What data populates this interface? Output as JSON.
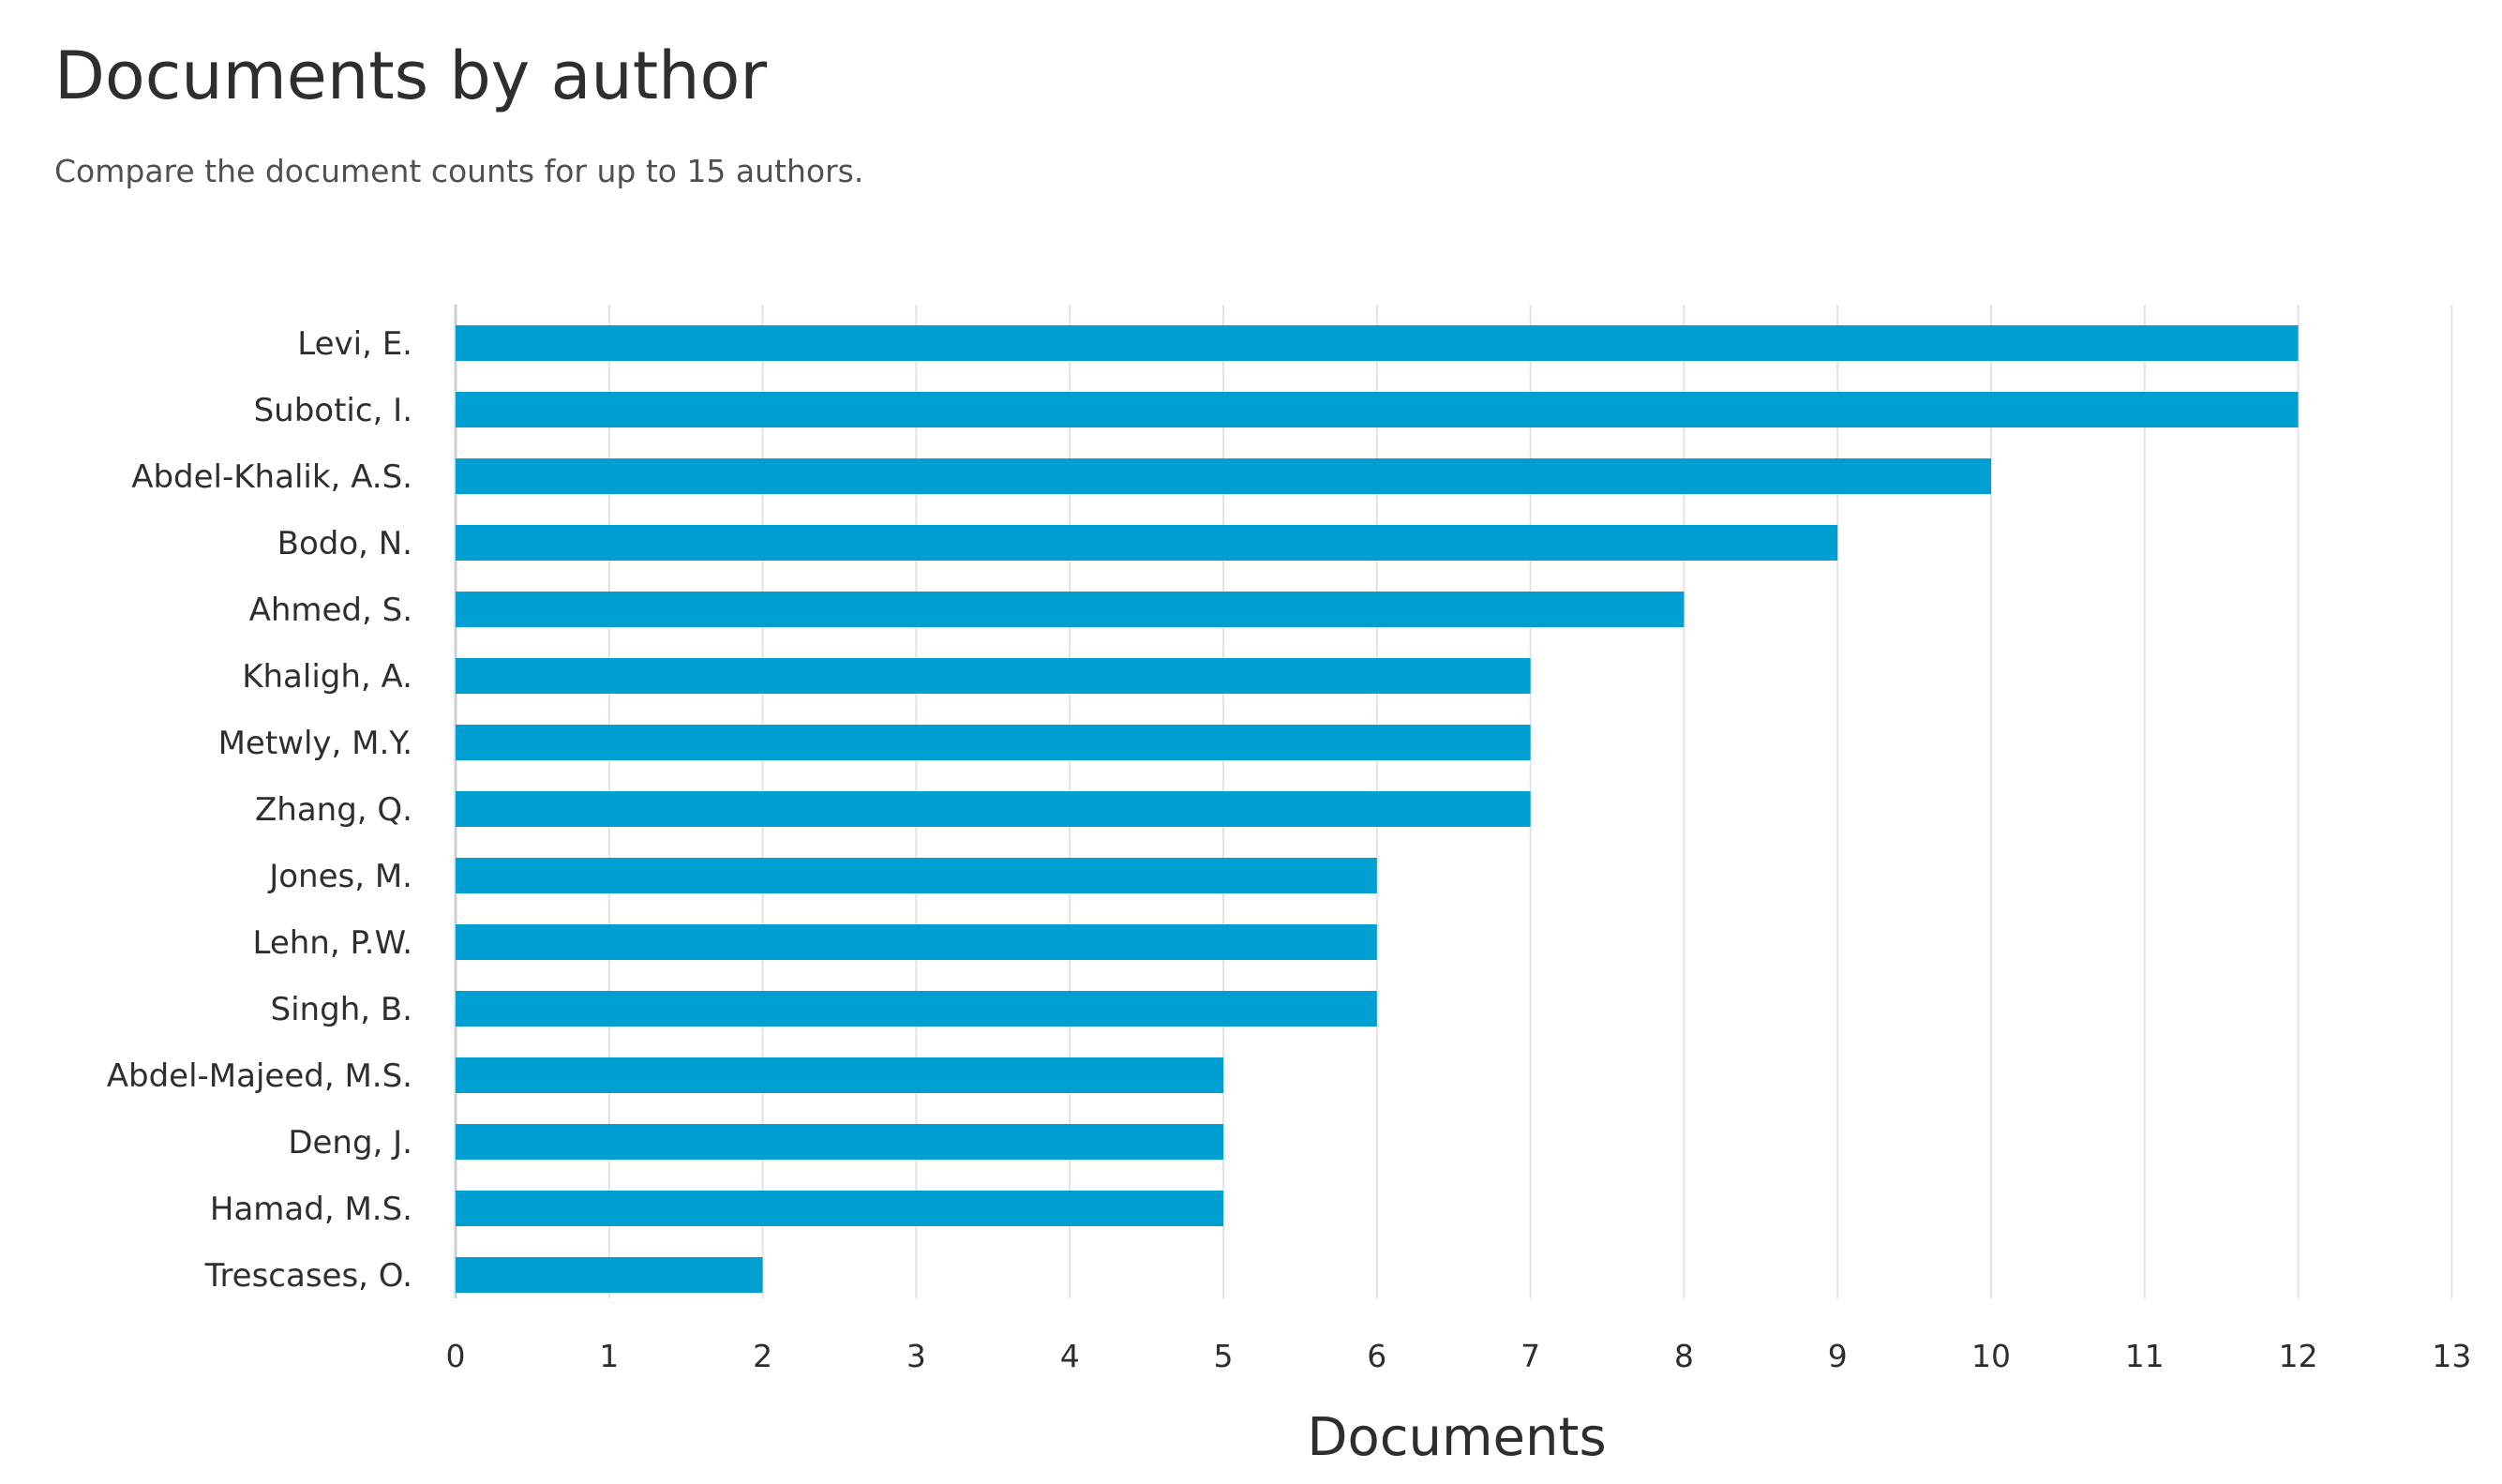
{
  "header": {
    "title": "Documents by author",
    "subtitle": "Compare the document counts for up to 15 authors."
  },
  "colors": {
    "bar": "#009fd1",
    "grid": "#e3e3e3",
    "label": "#2e2e2e"
  },
  "chart_data": {
    "type": "bar",
    "orientation": "horizontal",
    "categories": [
      "Levi, E.",
      "Subotic, I.",
      "Abdel-Khalik, A.S.",
      "Bodo, N.",
      "Ahmed, S.",
      "Khaligh, A.",
      "Metwly, M.Y.",
      "Zhang, Q.",
      "Jones, M.",
      "Lehn, P.W.",
      "Singh, B.",
      "Abdel-Majeed, M.S.",
      "Deng, J.",
      "Hamad, M.S.",
      "Trescases, O."
    ],
    "values": [
      12,
      12,
      10,
      9,
      8,
      7,
      7,
      7,
      6,
      6,
      6,
      5,
      5,
      5,
      2
    ],
    "title": "Documents by author",
    "subtitle": "Compare the document counts for up to 15 authors.",
    "xlabel": "Documents",
    "ylabel": "",
    "xlim": [
      0,
      13
    ],
    "xticks": [
      0,
      1,
      2,
      3,
      4,
      5,
      6,
      7,
      8,
      9,
      10,
      11,
      12,
      13
    ],
    "grid": true,
    "legend": "none"
  }
}
